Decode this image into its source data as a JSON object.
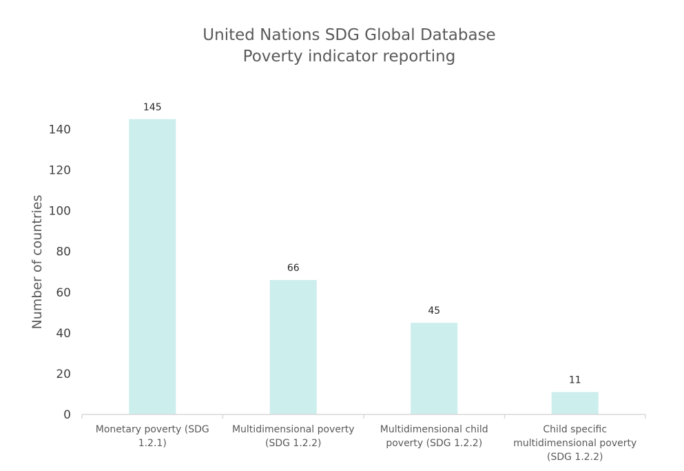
{
  "chart_data": {
    "type": "bar",
    "title_lines": [
      "United Nations SDG Global Database",
      "Poverty indicator reporting"
    ],
    "xlabel": "",
    "ylabel": "Number of countries",
    "ylim": [
      0,
      150
    ],
    "yticks": [
      0,
      20,
      40,
      60,
      80,
      100,
      120,
      140
    ],
    "grid": false,
    "legend": "none",
    "bar_color": "#cceeed",
    "axis_color": "#d9d9d9",
    "categories": [
      {
        "lines": [
          "Monetary poverty (SDG",
          "1.2.1)"
        ]
      },
      {
        "lines": [
          "Multidimensional poverty",
          "(SDG 1.2.2)"
        ]
      },
      {
        "lines": [
          "Multidimensional child",
          "poverty (SDG 1.2.2)"
        ]
      },
      {
        "lines": [
          "Child specific",
          "multidimensional poverty",
          "(SDG 1.2.2)"
        ]
      }
    ],
    "values": [
      145,
      66,
      45,
      11
    ]
  }
}
